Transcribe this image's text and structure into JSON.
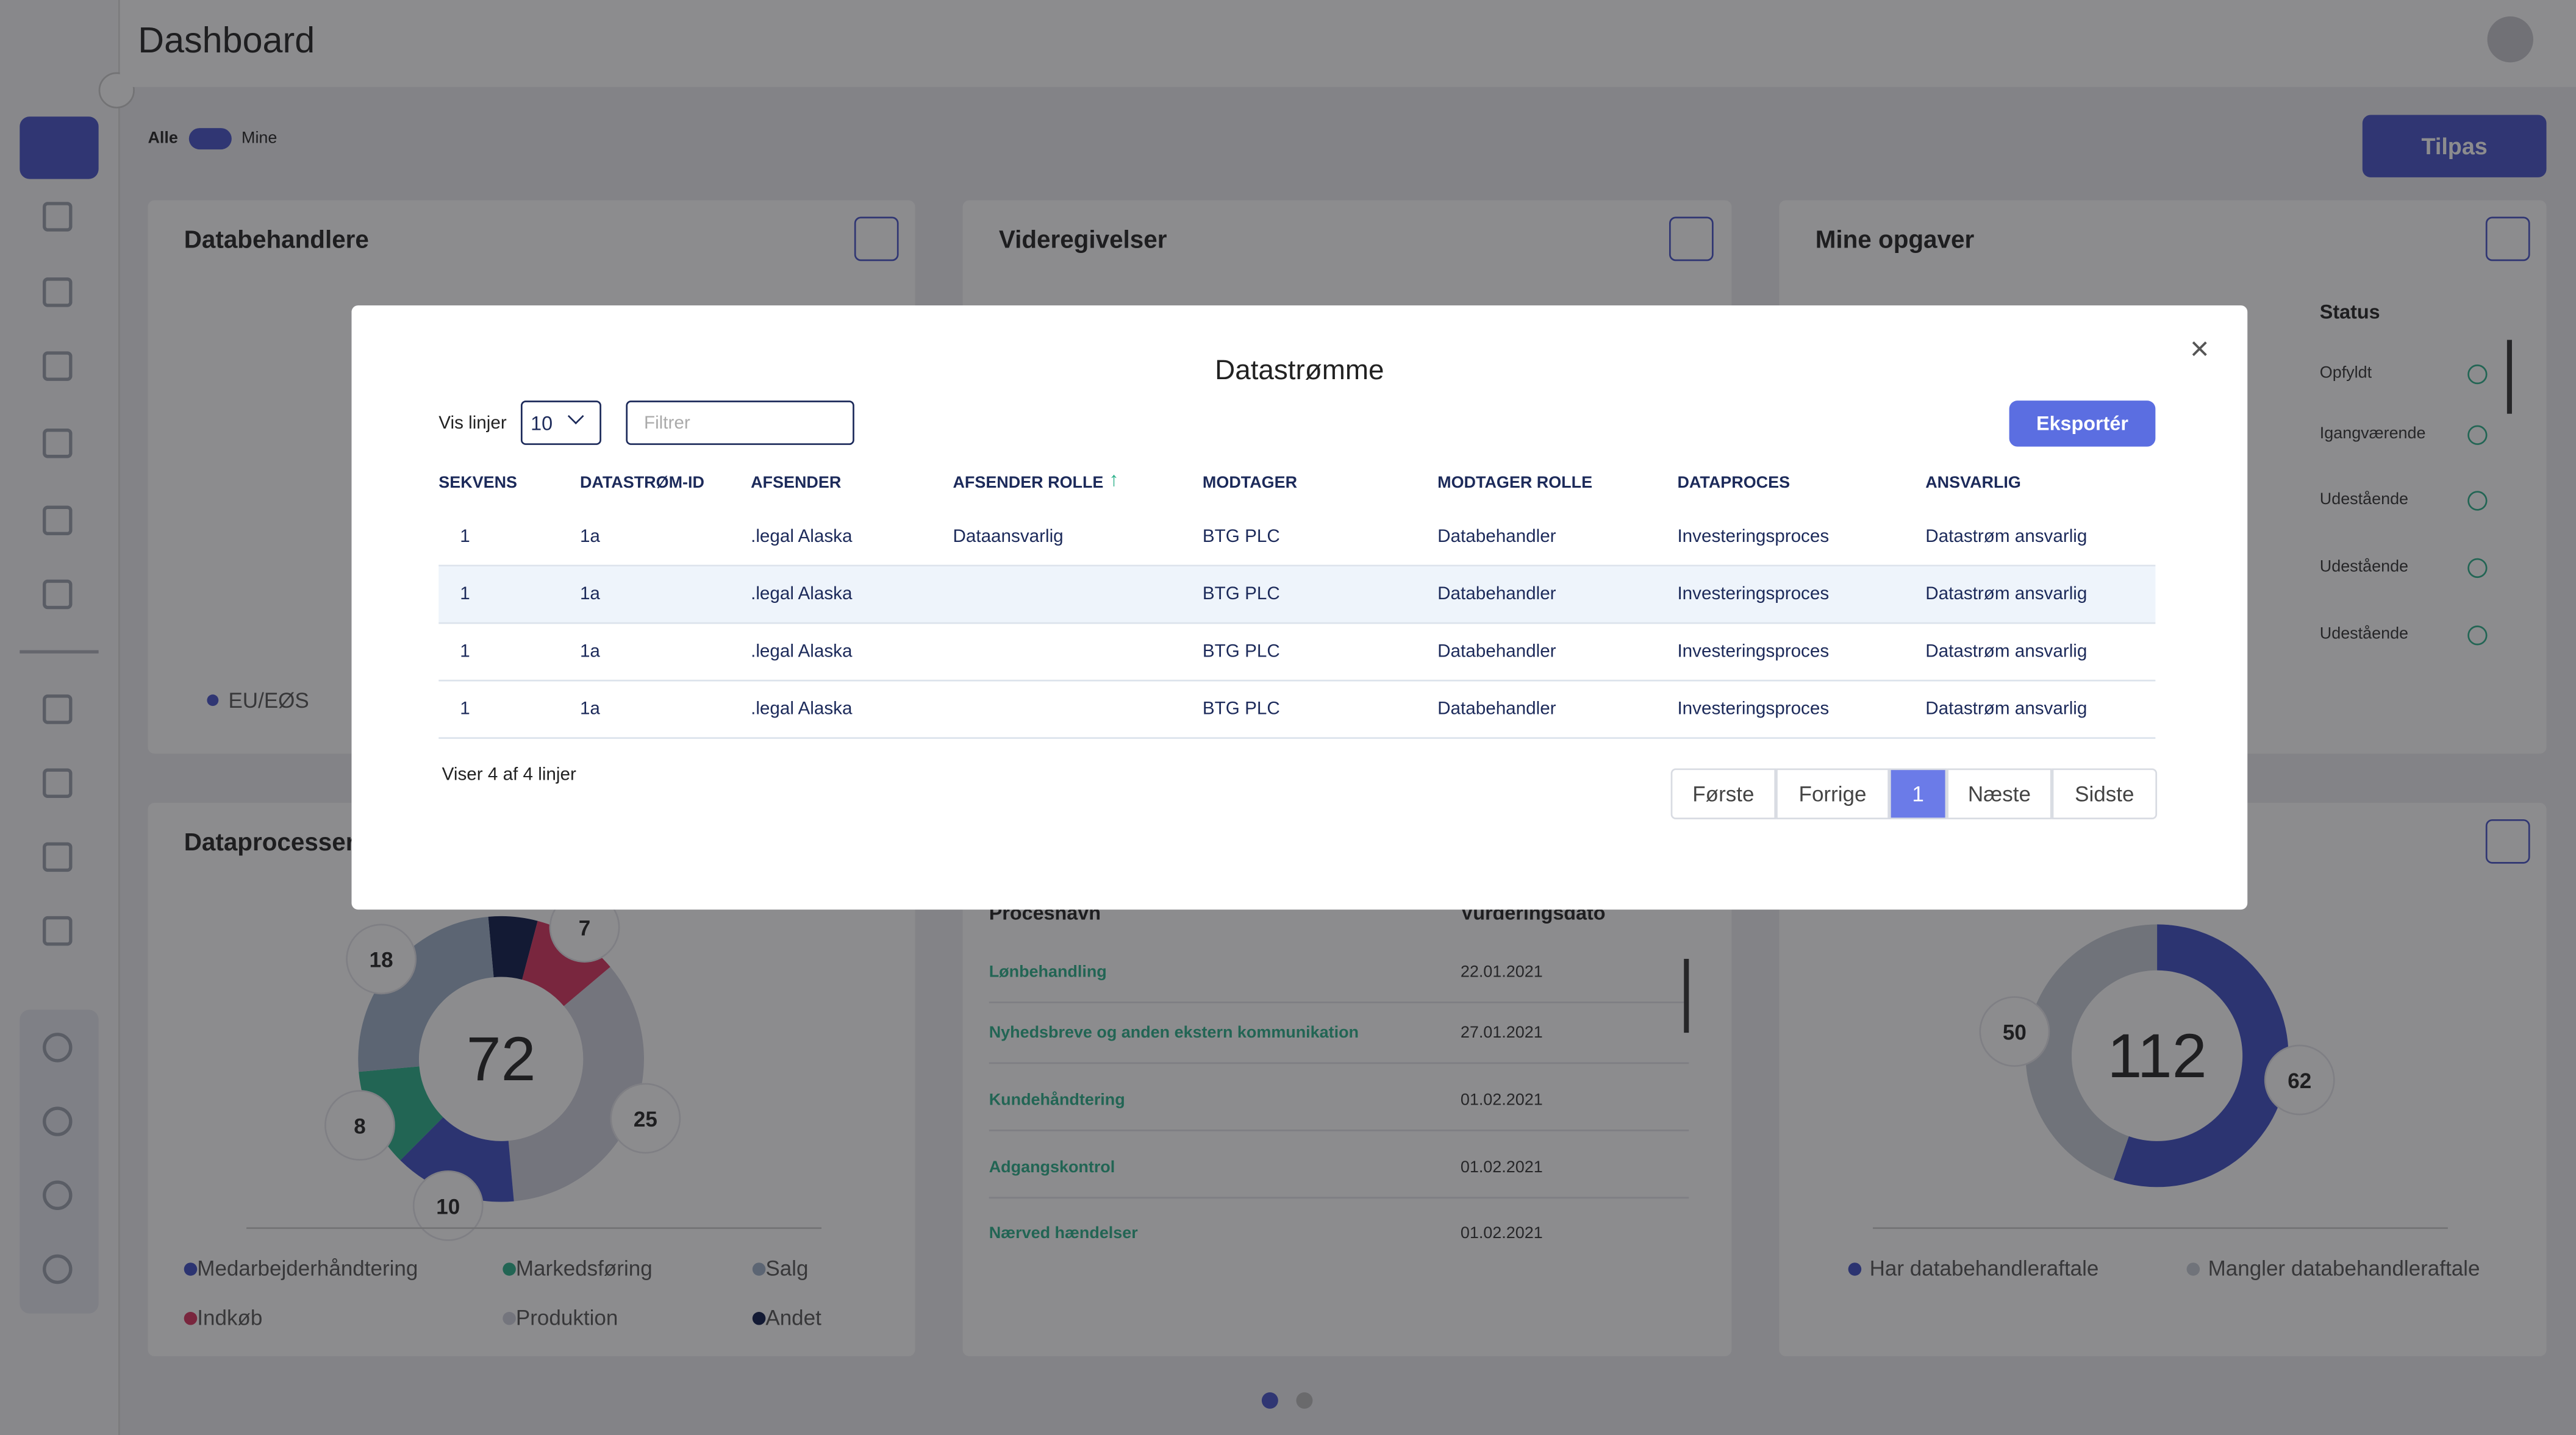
{
  "header": {
    "title": "Dashboard"
  },
  "toggle": {
    "left": "Alle",
    "right": "Mine"
  },
  "customize_button": "Tilpas",
  "widgets": [
    {
      "title": "Databehandlere",
      "legend": [
        "EU/EØS"
      ]
    },
    {
      "title": "Videregivelser"
    },
    {
      "title": "Mine opgaver",
      "status_header": "Status",
      "statuses": [
        "Opfyldt",
        "Igangværende",
        "Udestående",
        "Udestående",
        "Udestående"
      ]
    },
    {
      "title": "Dataprocesser",
      "total": 72,
      "segments": [
        {
          "name": "Medarbejderhåndtering",
          "value": 10,
          "color": "#3f4fc4"
        },
        {
          "name": "Markedsføring",
          "value": 8,
          "color": "#2bb08a"
        },
        {
          "name": "Salg",
          "value": 18,
          "color": "#9fb0c8"
        },
        {
          "name": "Indkøb",
          "value": 7,
          "color": "#d8335f"
        },
        {
          "name": "Produktion",
          "value": 25,
          "color": "#cfd0dc"
        },
        {
          "name": "Andet",
          "value": 4,
          "color": "#0d1a4a"
        }
      ]
    },
    {
      "columns": [
        "Procesnavn",
        "Vurderingsdato"
      ],
      "rows": [
        [
          "Lønbehandling",
          "22.01.2021"
        ],
        [
          "Nyhedsbreve og anden ekstern kommunikation",
          "27.01.2021"
        ],
        [
          "Kundehåndtering",
          "01.02.2021"
        ],
        [
          "Adgangskontrol",
          "01.02.2021"
        ],
        [
          "Nærved hændelser",
          "01.02.2021"
        ]
      ]
    },
    {
      "total": 112,
      "segments": [
        {
          "name": "Har databehandleraftale",
          "value": 62,
          "color": "#3f4fc4"
        },
        {
          "name": "Mangler databehandleraftale",
          "value": 50,
          "color": "#c7ccd6"
        }
      ]
    }
  ],
  "modal": {
    "title": "Datastrømme",
    "rows_label": "Vis linjer",
    "rows_select": "10",
    "filter_placeholder": "Filtrer",
    "export_button": "Eksportér",
    "columns": [
      "SEKVENS",
      "DATASTRØM-ID",
      "AFSENDER",
      "AFSENDER ROLLE",
      "MODTAGER",
      "MODTAGER ROLLE",
      "DATAPROCES",
      "ANSVARLIG"
    ],
    "rows": [
      [
        1,
        "1a",
        ".legal Alaska",
        "Dataansvarlig",
        "BTG PLC",
        "Databehandler",
        "Investeringsproces",
        "Datastrøm ansvarlig"
      ],
      [
        1,
        "1a",
        ".legal Alaska",
        "",
        "BTG PLC",
        "Databehandler",
        "Investeringsproces",
        "Datastrøm ansvarlig"
      ],
      [
        1,
        "1a",
        ".legal Alaska",
        "",
        "BTG PLC",
        "Databehandler",
        "Investeringsproces",
        "Datastrøm ansvarlig"
      ],
      [
        1,
        "1a",
        ".legal Alaska",
        "",
        "BTG PLC",
        "Databehandler",
        "Investeringsproces",
        "Datastrøm ansvarlig"
      ]
    ],
    "summary": "Viser 4 af 4 linjer",
    "pagination": [
      "Første",
      "Forrige",
      "1",
      "Næste",
      "Sidste"
    ]
  }
}
